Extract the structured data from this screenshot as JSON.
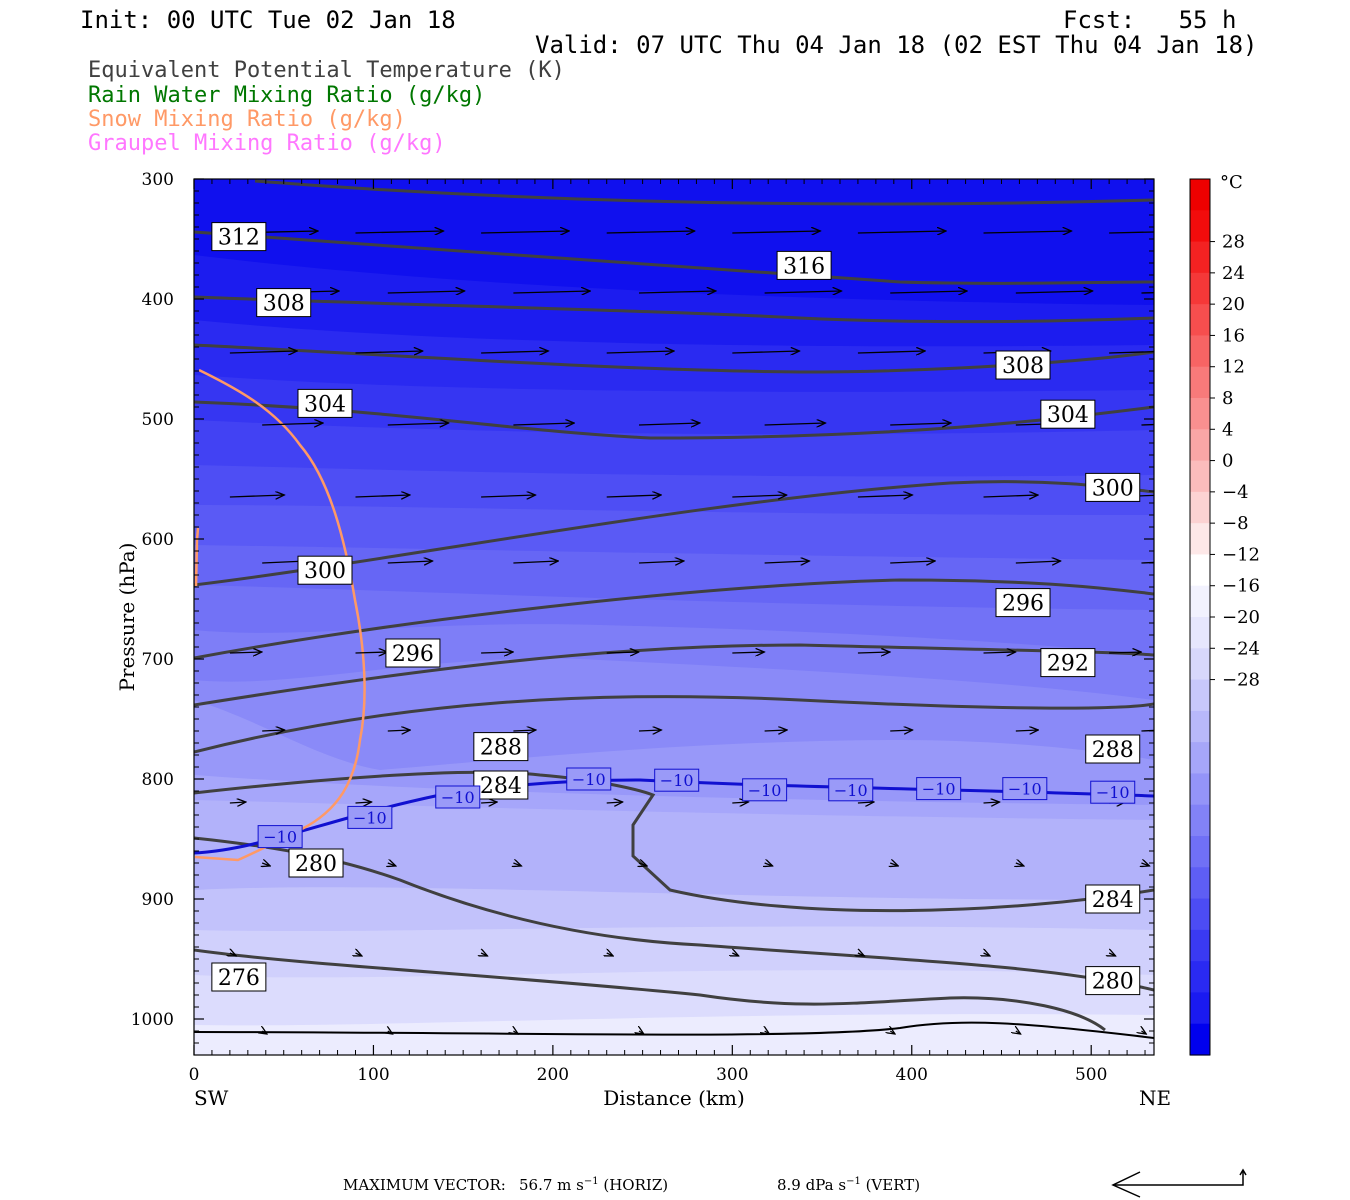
{
  "header": {
    "init": "Init: 00 UTC Tue 02 Jan 18",
    "fcst": "Fcst:   55 h",
    "valid": "Valid: 07 UTC Thu 04 Jan 18 (02 EST Thu 04 Jan 18)"
  },
  "legend": [
    {
      "label": "Equivalent Potential Temperature (K)",
      "color": "#404040"
    },
    {
      "label": "Rain Water Mixing Ratio (g/kg)",
      "color": "#007700"
    },
    {
      "label": "Snow Mixing Ratio (g/kg)",
      "color": "#ff9966"
    },
    {
      "label": "Graupel Mixing Ratio (g/kg)",
      "color": "#ff77ff"
    }
  ],
  "chart_data": {
    "type": "contour",
    "xlabel": "Distance (km)",
    "ylabel": "Pressure (hPa)",
    "xlim": [
      0,
      535
    ],
    "ylim": [
      1030,
      300
    ],
    "x_ticks": [
      "0",
      "100",
      "200",
      "300",
      "400",
      "500"
    ],
    "y_ticks": [
      "300",
      "400",
      "500",
      "600",
      "700",
      "800",
      "900",
      "1000"
    ],
    "x_left_label": "SW",
    "x_right_label": "NE",
    "colorbar": {
      "unit": "°C",
      "tick_labels": [
        "28",
        "24",
        "20",
        "16",
        "12",
        "8",
        "4",
        "0",
        "−4",
        "−8",
        "−12",
        "−16",
        "−20",
        "−24",
        "−28"
      ],
      "colors": [
        "#0000ee",
        "#1a1af0",
        "#2a2af2",
        "#3a3af3",
        "#4c4cf4",
        "#5e5ef5",
        "#7070f6",
        "#8282f7",
        "#9494f8",
        "#a6a6f9",
        "#b8b8fa",
        "#c8c8fb",
        "#d8d8fc",
        "#e6e6fd",
        "#f2f2fe",
        "#ffffff",
        "#fde8e8",
        "#fcd2d2",
        "#fbbcbc",
        "#faa6a6",
        "#f99090",
        "#f87a7a",
        "#f76464",
        "#f64e4e",
        "#f53838",
        "#f42222",
        "#f30c0c",
        "#ee0000"
      ]
    },
    "theta_e_labels": [
      {
        "value": "312",
        "x": 25,
        "p": 348
      },
      {
        "value": "316",
        "x": 340,
        "p": 372
      },
      {
        "value": "308",
        "x": 50,
        "p": 403
      },
      {
        "value": "308",
        "x": 462,
        "p": 455
      },
      {
        "value": "304",
        "x": 73,
        "p": 487
      },
      {
        "value": "304",
        "x": 487,
        "p": 496
      },
      {
        "value": "300",
        "x": 512,
        "p": 557
      },
      {
        "value": "300",
        "x": 73,
        "p": 626
      },
      {
        "value": "296",
        "x": 462,
        "p": 653
      },
      {
        "value": "296",
        "x": 122,
        "p": 695
      },
      {
        "value": "292",
        "x": 487,
        "p": 703
      },
      {
        "value": "288",
        "x": 171,
        "p": 773
      },
      {
        "value": "288",
        "x": 512,
        "p": 775
      },
      {
        "value": "284",
        "x": 171,
        "p": 805
      },
      {
        "value": "280",
        "x": 68,
        "p": 870
      },
      {
        "value": "284",
        "x": 512,
        "p": 900
      },
      {
        "value": "276",
        "x": 25,
        "p": 965
      },
      {
        "value": "280",
        "x": 512,
        "p": 968
      }
    ],
    "isotherm_labels": [
      {
        "value": "−10",
        "x": 48,
        "p": 848
      },
      {
        "value": "−10",
        "x": 98,
        "p": 832
      },
      {
        "value": "−10",
        "x": 147,
        "p": 815
      },
      {
        "value": "−10",
        "x": 220,
        "p": 800
      },
      {
        "value": "−10",
        "x": 269,
        "p": 801
      },
      {
        "value": "−10",
        "x": 318,
        "p": 809
      },
      {
        "value": "−10",
        "x": 366,
        "p": 809
      },
      {
        "value": "−10",
        "x": 415,
        "p": 808
      },
      {
        "value": "−10",
        "x": 463,
        "p": 808
      },
      {
        "value": "−10",
        "x": 512,
        "p": 811
      }
    ]
  },
  "footer": {
    "max_vector_label": "MAXIMUM VECTOR:",
    "horiz_value": "56.7 m s",
    "horiz_exp": "−1",
    "horiz_tag": " (HORIZ)",
    "vert_value": "8.9 dPa s",
    "vert_exp": "−1",
    "vert_tag": " (VERT)"
  }
}
